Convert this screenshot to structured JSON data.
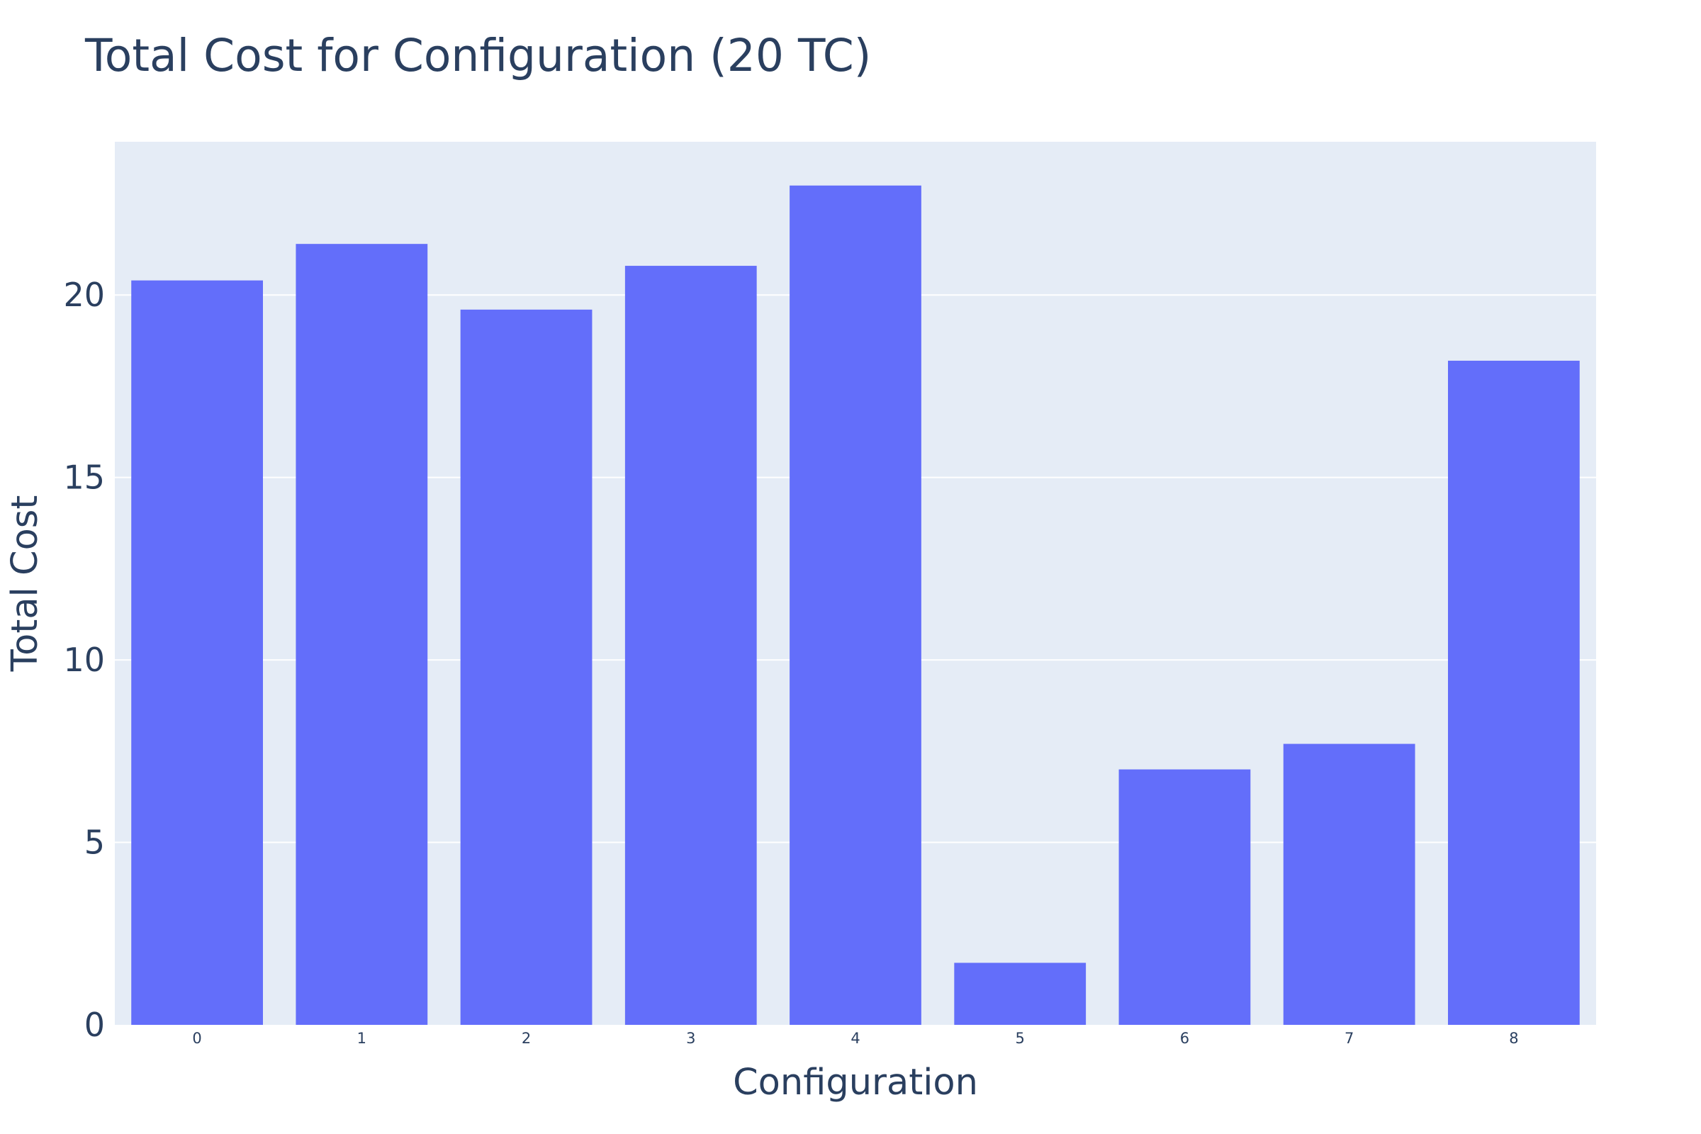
{
  "chart_data": {
    "type": "bar",
    "title": "Total Cost for Configuration (20 TC)",
    "xlabel": "Configuration",
    "ylabel": "Total Cost",
    "categories": [
      "0",
      "1",
      "2",
      "3",
      "4",
      "5",
      "6",
      "7",
      "8"
    ],
    "values": [
      20.4,
      21.4,
      19.6,
      20.8,
      23.0,
      1.7,
      7.0,
      7.7,
      18.2
    ],
    "ylim": [
      0,
      24.2
    ],
    "yticks": [
      "0",
      "5",
      "10",
      "15",
      "20"
    ],
    "ytick_values": [
      0,
      5,
      10,
      15,
      20
    ],
    "grid": true,
    "colors": {
      "bar": "#636efa",
      "plot_bg": "#e5ecf6",
      "grid": "#ffffff",
      "text": "#2a3f5f"
    }
  }
}
